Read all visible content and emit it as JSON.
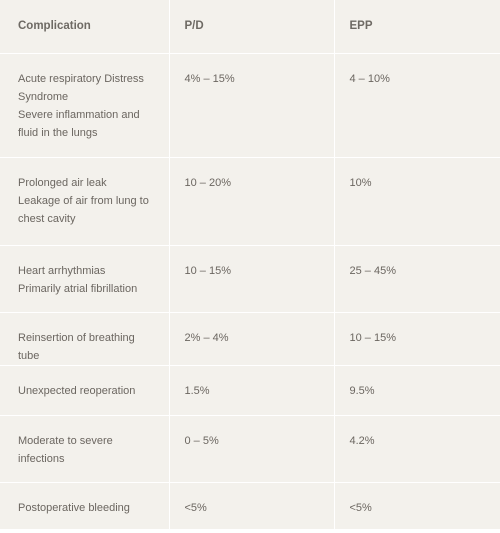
{
  "headers": [
    "Complication",
    "P/D",
    "EPP"
  ],
  "rows": [
    {
      "complication": [
        "Acute respiratory Distress Syndrome",
        "Severe inflammation and fluid in the lungs"
      ],
      "pd": "4% – 15%",
      "epp": "4 – 10%"
    },
    {
      "complication": [
        "Prolonged air leak",
        "Leakage of air from lung to chest cavity"
      ],
      "pd": "10 – 20%",
      "epp": "10%"
    },
    {
      "complication": [
        "Heart arrhythmias",
        "Primarily atrial fibrillation"
      ],
      "pd": "10 – 15%",
      "epp": "25 – 45%"
    },
    {
      "complication": [
        "Reinsertion of breathing tube"
      ],
      "pd": "2% – 4%",
      "epp": "10 – 15%"
    },
    {
      "complication": [
        "Unexpected reoperation"
      ],
      "pd": "1.5%",
      "epp": "9.5%"
    },
    {
      "complication": [
        "Moderate to severe infections"
      ],
      "pd": "0 – 5%",
      "epp": "4.2%"
    },
    {
      "complication": [
        "Postoperative bleeding"
      ],
      "pd": "<5%",
      "epp": "<5%"
    }
  ],
  "colors": {
    "table_bg": "#f3f1ec",
    "grid_lines": "#ffffff",
    "text": "#6b6660"
  }
}
